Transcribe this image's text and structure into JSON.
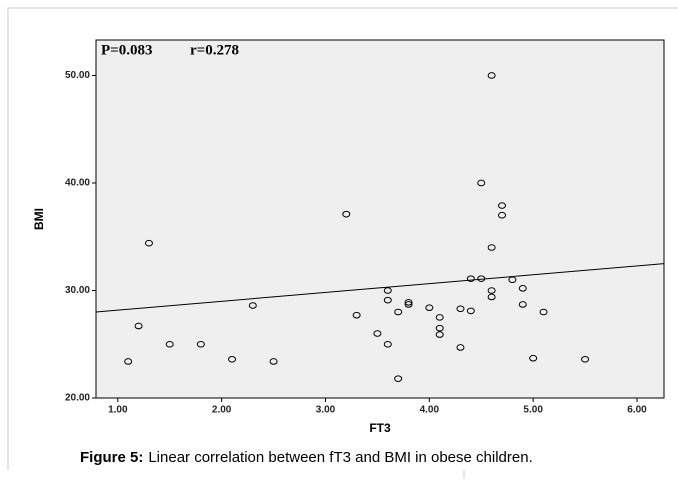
{
  "chart_data": {
    "type": "scatter",
    "annotations": [
      "P=0.083",
      "r=0.278"
    ],
    "xlabel": "FT3",
    "ylabel": "BMI",
    "caption_label": "Figure 5:",
    "caption": "Linear correlation between fT3 and BMI in obese children.",
    "xlim": [
      0.79,
      6.26
    ],
    "ylim": [
      20,
      53.3
    ],
    "xticks": [
      {
        "value": 1,
        "label": "1.00"
      },
      {
        "value": 2,
        "label": "2.00"
      },
      {
        "value": 3,
        "label": "3.00"
      },
      {
        "value": 4,
        "label": "4.00"
      },
      {
        "value": 5,
        "label": "5.00"
      },
      {
        "value": 6,
        "label": "6.00"
      }
    ],
    "yticks": [
      {
        "value": 20,
        "label": "20.00"
      },
      {
        "value": 30,
        "label": "30.00"
      },
      {
        "value": 40,
        "label": "40.00"
      },
      {
        "value": 50,
        "label": "50.00"
      }
    ],
    "x": [
      1.1,
      1.2,
      1.3,
      1.5,
      1.8,
      2.1,
      2.3,
      2.5,
      3.2,
      3.3,
      3.5,
      3.6,
      3.6,
      3.6,
      3.7,
      3.7,
      3.8,
      3.8,
      4.0,
      4.1,
      4.1,
      4.1,
      4.3,
      4.3,
      4.4,
      4.4,
      4.5,
      4.5,
      4.6,
      4.6,
      4.6,
      4.6,
      4.7,
      4.7,
      4.8,
      4.9,
      4.9,
      5.0,
      5.1,
      5.5
    ],
    "values": [
      23.4,
      26.7,
      34.4,
      25.0,
      25.0,
      23.6,
      28.6,
      23.4,
      37.1,
      27.7,
      26.0,
      30.0,
      29.1,
      25.0,
      28.0,
      21.8,
      28.9,
      28.7,
      28.4,
      27.5,
      26.5,
      25.9,
      28.3,
      24.7,
      31.1,
      28.1,
      40.0,
      31.1,
      50.0,
      34.0,
      30.0,
      29.4,
      37.9,
      37.0,
      31.0,
      30.2,
      28.7,
      23.7,
      28.0,
      23.6
    ],
    "fit_line": {
      "x": [
        0.79,
        6.26
      ],
      "y": [
        28.0,
        32.5
      ]
    },
    "plot_color": "#efefef",
    "marker_color": "#000000",
    "line_color": "#000000"
  }
}
